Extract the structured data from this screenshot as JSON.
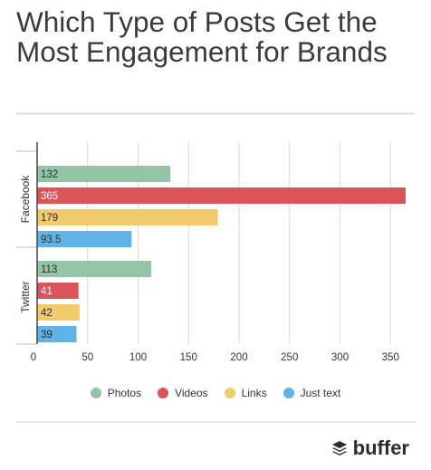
{
  "title": "Which Type of Posts Get the Most Engagement for Brands",
  "brand": {
    "name": "buffer",
    "icon": "buffer-stack-icon"
  },
  "colors": {
    "Photos": "#93c5a4",
    "Videos": "#dc5358",
    "Links": "#f1cb6c",
    "Just text": "#5fb3e6"
  },
  "chart_data": {
    "type": "bar",
    "orientation": "horizontal",
    "title": "Which Type of Posts Get the Most Engagement for Brands",
    "categories": [
      "Facebook",
      "Twitter"
    ],
    "series": [
      {
        "name": "Photos",
        "values": [
          132,
          113
        ]
      },
      {
        "name": "Videos",
        "values": [
          365,
          41
        ]
      },
      {
        "name": "Links",
        "values": [
          179,
          42
        ]
      },
      {
        "name": "Just text",
        "values": [
          93.5,
          39
        ]
      }
    ],
    "value_labels": [
      [
        "132",
        "113"
      ],
      [
        "365",
        "41"
      ],
      [
        "179",
        "42"
      ],
      [
        "93.5",
        "39"
      ]
    ],
    "xticks": [
      0,
      50,
      100,
      150,
      200,
      250,
      300,
      350
    ],
    "xlim": [
      0,
      375
    ],
    "grid": true,
    "legend_position": "bottom"
  }
}
